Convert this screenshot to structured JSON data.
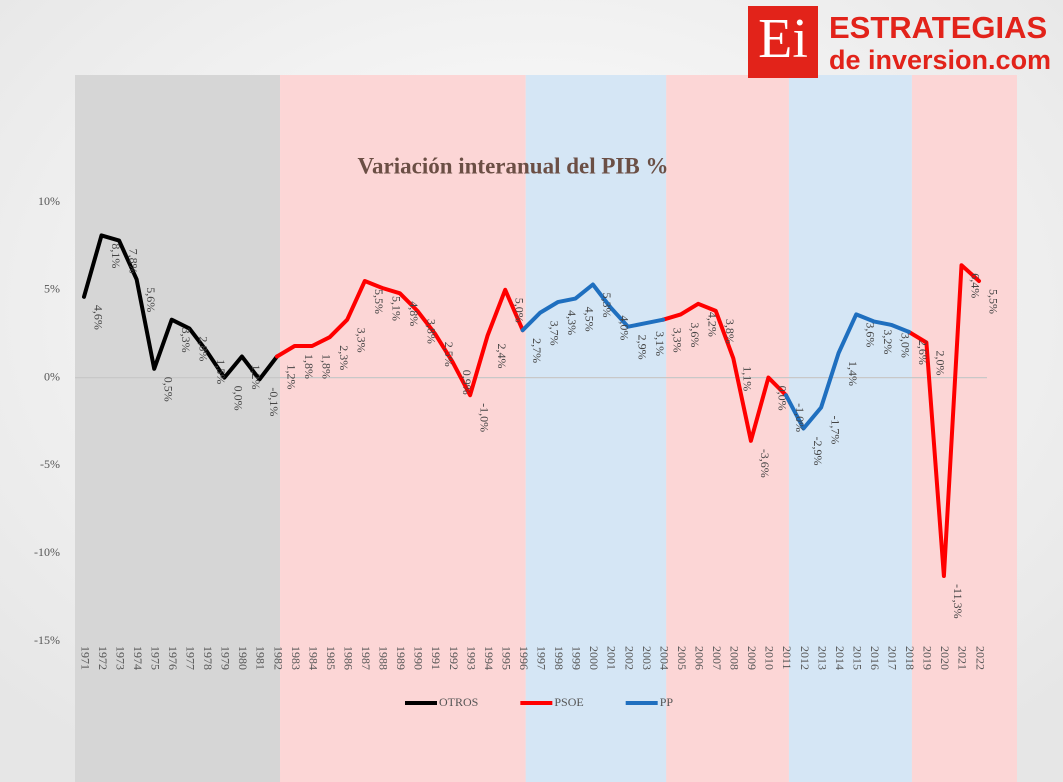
{
  "logo": {
    "mark": "Ei",
    "name": "ESTRATEGIAS",
    "domain": "de inversion.com"
  },
  "chart_data": {
    "type": "line",
    "title": "Variación interanual del PIB %",
    "categories": [
      "1971",
      "1972",
      "1973",
      "1974",
      "1975",
      "1976",
      "1977",
      "1978",
      "1979",
      "1980",
      "1981",
      "1982",
      "1983",
      "1984",
      "1985",
      "1986",
      "1987",
      "1988",
      "1989",
      "1990",
      "1991",
      "1992",
      "1993",
      "1994",
      "1995",
      "1996",
      "1997",
      "1998",
      "1999",
      "2000",
      "2001",
      "2002",
      "2003",
      "2004",
      "2005",
      "2006",
      "2007",
      "2008",
      "2009",
      "2010",
      "2011",
      "2012",
      "2013",
      "2014",
      "2015",
      "2016",
      "2017",
      "2018",
      "2019",
      "2020",
      "2021",
      "2022"
    ],
    "ylim": [
      -15,
      10
    ],
    "yticks": [
      {
        "value": 10,
        "label": "10%"
      },
      {
        "value": 5,
        "label": "5%"
      },
      {
        "value": 0,
        "label": "0%"
      },
      {
        "value": -5,
        "label": "-5%"
      },
      {
        "value": -10,
        "label": "-10%"
      },
      {
        "value": -15,
        "label": "-15%"
      }
    ],
    "zero_line": true,
    "legend": "bottom",
    "series": [
      {
        "name": "OTROS",
        "color": "#000000",
        "values": [
          4.6,
          8.1,
          7.8,
          5.6,
          0.5,
          3.3,
          2.8,
          1.5,
          0.0,
          1.2,
          -0.1,
          1.2,
          null,
          null,
          null,
          null,
          null,
          null,
          null,
          null,
          null,
          null,
          null,
          null,
          null,
          null,
          null,
          null,
          null,
          null,
          null,
          null,
          null,
          null,
          null,
          null,
          null,
          null,
          null,
          null,
          null,
          null,
          null,
          null,
          null,
          null,
          null,
          null,
          null,
          null,
          null,
          null
        ],
        "value_labels": [
          "4,6%",
          "8,1%",
          "7,8%",
          "5,6%",
          "0,5%",
          "3,3%",
          "2,8%",
          "1,5%",
          "0,0%",
          "1,2%",
          "-0,1%",
          null,
          null,
          null,
          null,
          null,
          null,
          null,
          null,
          null,
          null,
          null,
          null,
          null,
          null,
          null,
          null,
          null,
          null,
          null,
          null,
          null,
          null,
          null,
          null,
          null,
          null,
          null,
          null,
          null,
          null,
          null,
          null,
          null,
          null,
          null,
          null,
          null,
          null,
          null,
          null,
          null
        ]
      },
      {
        "name": "PSOE",
        "color": "#ff0000",
        "values": [
          null,
          null,
          null,
          null,
          null,
          null,
          null,
          null,
          null,
          null,
          null,
          1.2,
          1.8,
          1.8,
          2.3,
          3.3,
          5.5,
          5.1,
          4.8,
          3.8,
          2.5,
          0.9,
          -1.0,
          2.4,
          5.0,
          2.7,
          null,
          null,
          null,
          null,
          null,
          null,
          null,
          3.3,
          3.6,
          4.2,
          3.8,
          1.1,
          -3.6,
          0.0,
          -1.0,
          null,
          null,
          null,
          null,
          null,
          null,
          2.6,
          2.0,
          -11.3,
          6.4,
          5.5
        ],
        "value_labels": [
          null,
          null,
          null,
          null,
          null,
          null,
          null,
          null,
          null,
          null,
          null,
          "1,2%",
          "1,8%",
          "1,8%",
          "2,3%",
          "3,3%",
          "5,5%",
          "5,1%",
          "4,8%",
          "3,8%",
          "2,5%",
          "0,9%",
          "-1,0%",
          "2,4%",
          "5,0%",
          null,
          null,
          null,
          null,
          null,
          null,
          null,
          null,
          "3,3%",
          "3,6%",
          "4,2%",
          "3,8%",
          "1,1%",
          "-3,6%",
          "0,0%",
          null,
          null,
          null,
          null,
          null,
          null,
          null,
          "2,6%",
          "2,0%",
          "-11,3%",
          "6,4%",
          "5,5%"
        ]
      },
      {
        "name": "PP",
        "color": "#1f6fbf",
        "values": [
          null,
          null,
          null,
          null,
          null,
          null,
          null,
          null,
          null,
          null,
          null,
          null,
          null,
          null,
          null,
          null,
          null,
          null,
          null,
          null,
          null,
          null,
          null,
          null,
          null,
          2.7,
          3.7,
          4.3,
          4.5,
          5.3,
          4.0,
          2.9,
          3.1,
          3.3,
          null,
          null,
          null,
          null,
          null,
          null,
          -1.0,
          -2.9,
          -1.7,
          1.4,
          3.6,
          3.2,
          3.0,
          2.6,
          null,
          null,
          null,
          null
        ],
        "value_labels": [
          null,
          null,
          null,
          null,
          null,
          null,
          null,
          null,
          null,
          null,
          null,
          null,
          null,
          null,
          null,
          null,
          null,
          null,
          null,
          null,
          null,
          null,
          null,
          null,
          null,
          "2,7%",
          "3,7%",
          "4,3%",
          "4,5%",
          "5,3%",
          "4,0%",
          "2,9%",
          "3,1%",
          null,
          null,
          null,
          null,
          null,
          null,
          null,
          "-1,0%",
          "-2,9%",
          "-1,7%",
          "1,4%",
          "3,6%",
          "3,2%",
          "3,0%",
          null,
          null,
          null,
          null,
          null
        ]
      }
    ]
  }
}
